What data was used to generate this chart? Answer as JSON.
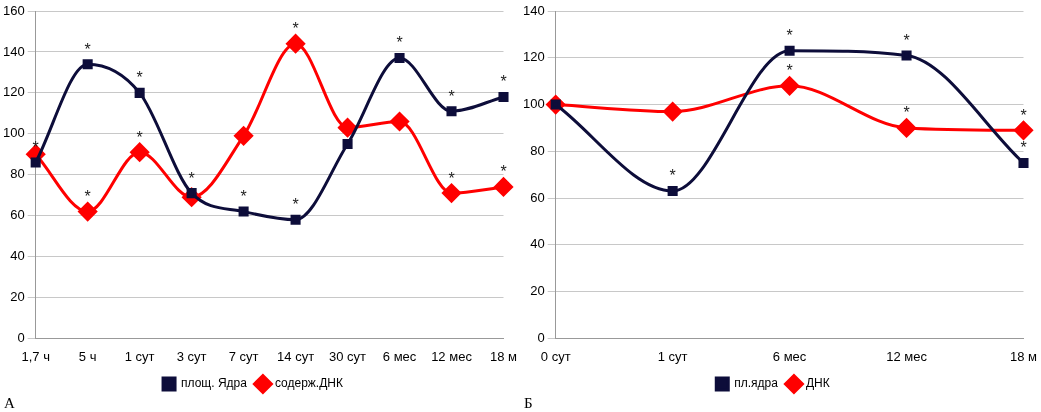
{
  "chart_data": [
    {
      "type": "line",
      "categories": [
        "1,7 ч",
        "5 ч",
        "1 сут",
        "3 сут",
        "7 сут",
        "14 сут",
        "30 сут",
        "6 мес",
        "12 мес",
        "18 м"
      ],
      "series": [
        {
          "name": "площ. Ядра",
          "color": "#0d0d3a",
          "marker": "square",
          "values": [
            86,
            134,
            120,
            71,
            62,
            58,
            95,
            137,
            111,
            118
          ]
        },
        {
          "name": "содерж.ДНК",
          "color": "#ff0000",
          "marker": "diamond",
          "values": [
            90,
            62,
            91,
            69,
            99,
            144,
            103,
            106,
            71,
            74
          ]
        }
      ],
      "ylim": [
        0,
        160
      ],
      "yticks": [
        0,
        20,
        40,
        60,
        80,
        100,
        120,
        140,
        160
      ],
      "grid": "y",
      "legend": "bottom",
      "line_style": "solid",
      "annotations": [
        "А",
        {
          "text": "*",
          "x": "1,7 ч",
          "y": 86
        },
        {
          "text": "*",
          "x": "5 ч",
          "y": 134
        },
        {
          "text": "*",
          "x": "5 ч",
          "y": 62
        },
        {
          "text": "*",
          "x": "1 сут",
          "y": 120
        },
        {
          "text": "*",
          "x": "1 сут",
          "y": 91
        },
        {
          "text": "*",
          "x": "3 сут",
          "y": 71
        },
        {
          "text": "*",
          "x": "7 сут",
          "y": 62
        },
        {
          "text": "*",
          "x": "14 сут",
          "y": 58
        },
        {
          "text": "*",
          "x": "14 сут",
          "y": 144
        },
        {
          "text": "*",
          "x": "6 мес",
          "y": 137
        },
        {
          "text": "*",
          "x": "12 мес",
          "y": 111
        },
        {
          "text": "*",
          "x": "12 мес",
          "y": 71
        },
        {
          "text": "*",
          "x": "18 м",
          "y": 118
        },
        {
          "text": "*",
          "x": "18 м",
          "y": 74
        }
      ]
    },
    {
      "type": "line",
      "categories": [
        "0 сут",
        "1 сут",
        "6 мес",
        "12 мес",
        "18 м"
      ],
      "series": [
        {
          "name": "пл.ядра",
          "color": "#0d0d3a",
          "marker": "square",
          "values": [
            100,
            63,
            123,
            121,
            75
          ]
        },
        {
          "name": "ДНК",
          "color": "#ff0000",
          "marker": "diamond",
          "values": [
            100,
            97,
            108,
            90,
            89
          ]
        }
      ],
      "ylim": [
        0,
        140
      ],
      "yticks": [
        0,
        20,
        40,
        60,
        80,
        100,
        120,
        140
      ],
      "grid": "y",
      "legend": "bottom",
      "line_style": "solid",
      "annotations": [
        "Б",
        {
          "text": "*",
          "x": "1 сут",
          "y": 63
        },
        {
          "text": "*",
          "x": "6 мес",
          "y": 123
        },
        {
          "text": "*",
          "x": "6 мес",
          "y": 108
        },
        {
          "text": "*",
          "x": "12 мес",
          "y": 121
        },
        {
          "text": "*",
          "x": "12 мес",
          "y": 90
        },
        {
          "text": "*",
          "x": "18 м",
          "y": 89
        },
        {
          "text": "*",
          "x": "18 м",
          "y": 75
        }
      ]
    }
  ]
}
